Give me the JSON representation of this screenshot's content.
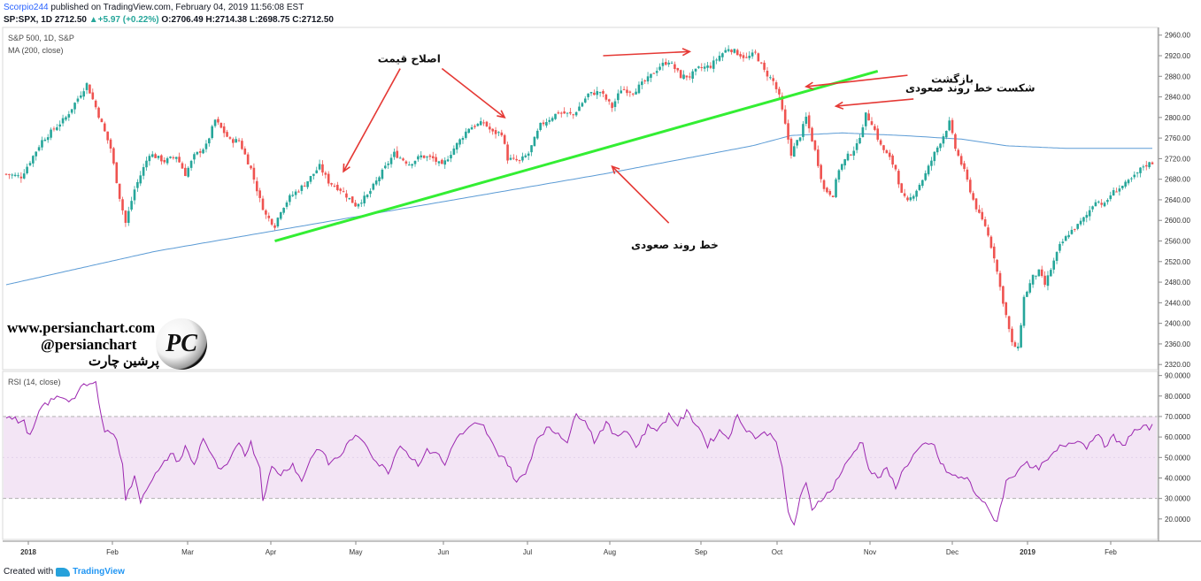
{
  "header": {
    "author": "Scorpio244",
    "published_text": "published on TradingView.com, February 04, 2019 11:56:08 EST",
    "symbol": "SP:SPX, 1D",
    "price": "2712.50",
    "change": "+5.97 (+0.22%)",
    "ohlc": "O:2706.49 H:2714.38 L:2698.75 C:2712.50"
  },
  "footer": {
    "created_with": "Created with",
    "brand": "TradingView"
  },
  "watermark": {
    "site": "www.persianchart.com",
    "handle": "@persianchart",
    "name_fa": "پرشین چارت",
    "logo_text": "PC"
  },
  "colors": {
    "up": "#26a69a",
    "down": "#ef5350",
    "ma": "#5b9bd5",
    "rsi": "#9c27b0",
    "trendline": "#33ee33",
    "arrow": "#e53935",
    "rsi_band": "#f3e5f5"
  },
  "chart_data": [
    {
      "type": "candlestick",
      "title": "S&P 500, 1D, S&P",
      "ma_label": "MA (200, close)",
      "ylim": [
        2310,
        2975
      ],
      "yticks": [
        2320,
        2360,
        2400,
        2440,
        2480,
        2520,
        2560,
        2600,
        2640,
        2680,
        2720,
        2760,
        2800,
        2840,
        2880,
        2920,
        2960
      ],
      "xlabels": [
        "2018",
        "Feb",
        "Mar",
        "Apr",
        "May",
        "Jun",
        "Jul",
        "Aug",
        "Sep",
        "Oct",
        "Nov",
        "Dec",
        "2019",
        "Feb"
      ],
      "close_anchors": [
        [
          0,
          2690
        ],
        [
          5,
          2685
        ],
        [
          12,
          2755
        ],
        [
          20,
          2800
        ],
        [
          27,
          2865
        ],
        [
          30,
          2820
        ],
        [
          35,
          2740
        ],
        [
          38,
          2645
        ],
        [
          40,
          2595
        ],
        [
          43,
          2660
        ],
        [
          48,
          2730
        ],
        [
          53,
          2715
        ],
        [
          57,
          2725
        ],
        [
          60,
          2690
        ],
        [
          63,
          2725
        ],
        [
          67,
          2745
        ],
        [
          70,
          2795
        ],
        [
          75,
          2755
        ],
        [
          78,
          2755
        ],
        [
          82,
          2700
        ],
        [
          85,
          2640
        ],
        [
          87,
          2610
        ],
        [
          90,
          2590
        ],
        [
          92,
          2620
        ],
        [
          95,
          2645
        ],
        [
          100,
          2670
        ],
        [
          105,
          2705
        ],
        [
          108,
          2675
        ],
        [
          112,
          2660
        ],
        [
          117,
          2630
        ],
        [
          121,
          2648
        ],
        [
          125,
          2685
        ],
        [
          130,
          2730
        ],
        [
          135,
          2710
        ],
        [
          139,
          2725
        ],
        [
          143,
          2720
        ],
        [
          146,
          2705
        ],
        [
          150,
          2740
        ],
        [
          155,
          2780
        ],
        [
          160,
          2790
        ],
        [
          163,
          2770
        ],
        [
          166,
          2770
        ],
        [
          168,
          2720
        ],
        [
          172,
          2715
        ],
        [
          175,
          2730
        ],
        [
          179,
          2785
        ],
        [
          185,
          2810
        ],
        [
          190,
          2805
        ],
        [
          195,
          2845
        ],
        [
          199,
          2850
        ],
        [
          203,
          2820
        ],
        [
          206,
          2855
        ],
        [
          210,
          2850
        ],
        [
          215,
          2875
        ],
        [
          219,
          2900
        ],
        [
          222,
          2910
        ],
        [
          226,
          2880
        ],
        [
          229,
          2880
        ],
        [
          232,
          2895
        ],
        [
          236,
          2900
        ],
        [
          239,
          2920
        ],
        [
          242,
          2935
        ],
        [
          245,
          2925
        ],
        [
          248,
          2915
        ],
        [
          251,
          2925
        ],
        [
          254,
          2890
        ],
        [
          257,
          2870
        ],
        [
          259,
          2840
        ],
        [
          261,
          2785
        ],
        [
          263,
          2730
        ],
        [
          266,
          2765
        ],
        [
          268,
          2800
        ],
        [
          271,
          2735
        ],
        [
          274,
          2660
        ],
        [
          277,
          2650
        ],
        [
          279,
          2700
        ],
        [
          282,
          2725
        ],
        [
          285,
          2745
        ],
        [
          288,
          2805
        ],
        [
          290,
          2790
        ],
        [
          293,
          2745
        ],
        [
          296,
          2720
        ],
        [
          298,
          2700
        ],
        [
          300,
          2650
        ],
        [
          302,
          2635
        ],
        [
          305,
          2660
        ],
        [
          308,
          2690
        ],
        [
          311,
          2730
        ],
        [
          314,
          2765
        ],
        [
          316,
          2790
        ],
        [
          318,
          2740
        ],
        [
          321,
          2695
        ],
        [
          324,
          2640
        ],
        [
          326,
          2610
        ],
        [
          328,
          2590
        ],
        [
          331,
          2530
        ],
        [
          333,
          2470
        ],
        [
          335,
          2415
        ],
        [
          337,
          2360
        ],
        [
          339,
          2350
        ],
        [
          341,
          2450
        ],
        [
          344,
          2490
        ],
        [
          346,
          2500
        ],
        [
          348,
          2475
        ],
        [
          351,
          2520
        ],
        [
          353,
          2550
        ],
        [
          356,
          2575
        ],
        [
          359,
          2590
        ],
        [
          362,
          2610
        ],
        [
          365,
          2640
        ],
        [
          368,
          2630
        ],
        [
          370,
          2650
        ],
        [
          372,
          2660
        ],
        [
          375,
          2670
        ],
        [
          378,
          2685
        ],
        [
          381,
          2706
        ],
        [
          384,
          2712.5
        ]
      ],
      "ma200": [
        [
          0,
          2475
        ],
        [
          50,
          2540
        ],
        [
          100,
          2590
        ],
        [
          150,
          2640
        ],
        [
          200,
          2690
        ],
        [
          250,
          2745
        ],
        [
          263,
          2765
        ],
        [
          280,
          2770
        ],
        [
          300,
          2765
        ],
        [
          320,
          2758
        ],
        [
          335,
          2745
        ],
        [
          355,
          2740
        ],
        [
          384,
          2740
        ]
      ],
      "trendline": {
        "from": [
          90,
          2560
        ],
        "to": [
          292,
          2890
        ]
      },
      "annotations": [
        {
          "text": "اصلاح قیمت",
          "at": [
            135,
            2907
          ]
        },
        {
          "text": "خط روند صعودی",
          "at": [
            224,
            2545
          ]
        },
        {
          "text": "بازگشت",
          "at": [
            317,
            2868
          ]
        },
        {
          "text": "شکست خط روند صعودی",
          "at": [
            323,
            2850
          ]
        }
      ],
      "arrows": [
        {
          "from": [
            132,
            2895
          ],
          "to": [
            113,
            2695
          ]
        },
        {
          "from": [
            146,
            2895
          ],
          "to": [
            167,
            2800
          ]
        },
        {
          "from": [
            200,
            2920
          ],
          "to": [
            229,
            2928
          ]
        },
        {
          "from": [
            304,
            2836
          ],
          "to": [
            278,
            2822
          ]
        },
        {
          "from": [
            302,
            2882
          ],
          "to": [
            268,
            2860
          ]
        },
        {
          "from": [
            222,
            2595
          ],
          "to": [
            203,
            2705
          ]
        }
      ]
    },
    {
      "type": "line",
      "title": "RSI (14, close)",
      "ylim": [
        10,
        92
      ],
      "yticks": [
        "20.0000",
        "30.0000",
        "40.0000",
        "50.0000",
        "60.0000",
        "70.0000",
        "80.0000",
        "90.0000"
      ],
      "band": [
        30,
        70
      ],
      "anchors": [
        [
          0,
          70
        ],
        [
          6,
          67
        ],
        [
          8,
          60
        ],
        [
          12,
          75
        ],
        [
          18,
          80
        ],
        [
          22,
          78
        ],
        [
          26,
          85
        ],
        [
          30,
          86
        ],
        [
          33,
          63
        ],
        [
          36,
          62
        ],
        [
          39,
          48
        ],
        [
          40,
          30
        ],
        [
          43,
          40
        ],
        [
          45,
          29
        ],
        [
          48,
          38
        ],
        [
          52,
          45
        ],
        [
          55,
          52
        ],
        [
          58,
          48
        ],
        [
          60,
          55
        ],
        [
          63,
          46
        ],
        [
          66,
          60
        ],
        [
          69,
          50
        ],
        [
          72,
          43
        ],
        [
          75,
          48
        ],
        [
          78,
          58
        ],
        [
          80,
          52
        ],
        [
          82,
          57
        ],
        [
          85,
          45
        ],
        [
          86,
          30
        ],
        [
          89,
          45
        ],
        [
          92,
          42
        ],
        [
          96,
          47
        ],
        [
          99,
          38
        ],
        [
          102,
          50
        ],
        [
          105,
          55
        ],
        [
          108,
          47
        ],
        [
          112,
          51
        ],
        [
          116,
          60
        ],
        [
          120,
          58
        ],
        [
          124,
          48
        ],
        [
          128,
          43
        ],
        [
          132,
          57
        ],
        [
          135,
          51
        ],
        [
          138,
          47
        ],
        [
          141,
          53
        ],
        [
          144,
          53
        ],
        [
          147,
          46
        ],
        [
          150,
          58
        ],
        [
          154,
          63
        ],
        [
          157,
          66
        ],
        [
          160,
          65
        ],
        [
          164,
          53
        ],
        [
          167,
          50
        ],
        [
          171,
          38
        ],
        [
          174,
          42
        ],
        [
          178,
          60
        ],
        [
          181,
          64
        ],
        [
          185,
          62
        ],
        [
          188,
          58
        ],
        [
          191,
          71
        ],
        [
          194,
          69
        ],
        [
          197,
          58
        ],
        [
          201,
          67
        ],
        [
          204,
          60
        ],
        [
          208,
          64
        ],
        [
          211,
          55
        ],
        [
          215,
          65
        ],
        [
          219,
          64
        ],
        [
          222,
          71
        ],
        [
          225,
          66
        ],
        [
          228,
          72
        ],
        [
          232,
          65
        ],
        [
          235,
          56
        ],
        [
          239,
          63
        ],
        [
          242,
          60
        ],
        [
          245,
          70
        ],
        [
          248,
          64
        ],
        [
          251,
          60
        ],
        [
          255,
          62
        ],
        [
          258,
          59
        ],
        [
          260,
          44
        ],
        [
          262,
          23
        ],
        [
          264,
          17
        ],
        [
          266,
          30
        ],
        [
          268,
          37
        ],
        [
          270,
          25
        ],
        [
          273,
          30
        ],
        [
          276,
          33
        ],
        [
          279,
          41
        ],
        [
          282,
          48
        ],
        [
          285,
          55
        ],
        [
          287,
          58
        ],
        [
          289,
          44
        ],
        [
          292,
          40
        ],
        [
          295,
          44
        ],
        [
          298,
          36
        ],
        [
          301,
          45
        ],
        [
          305,
          53
        ],
        [
          308,
          56
        ],
        [
          311,
          56
        ],
        [
          313,
          47
        ],
        [
          316,
          42
        ],
        [
          319,
          40
        ],
        [
          322,
          40
        ],
        [
          324,
          34
        ],
        [
          327,
          29
        ],
        [
          330,
          22
        ],
        [
          332,
          19
        ],
        [
          335,
          38
        ],
        [
          338,
          42
        ],
        [
          341,
          48
        ],
        [
          344,
          44
        ],
        [
          347,
          46
        ],
        [
          350,
          50
        ],
        [
          353,
          55
        ],
        [
          356,
          57
        ],
        [
          359,
          59
        ],
        [
          362,
          55
        ],
        [
          365,
          62
        ],
        [
          368,
          56
        ],
        [
          371,
          60
        ],
        [
          374,
          55
        ],
        [
          377,
          62
        ],
        [
          380,
          64
        ],
        [
          384,
          65
        ]
      ]
    }
  ]
}
